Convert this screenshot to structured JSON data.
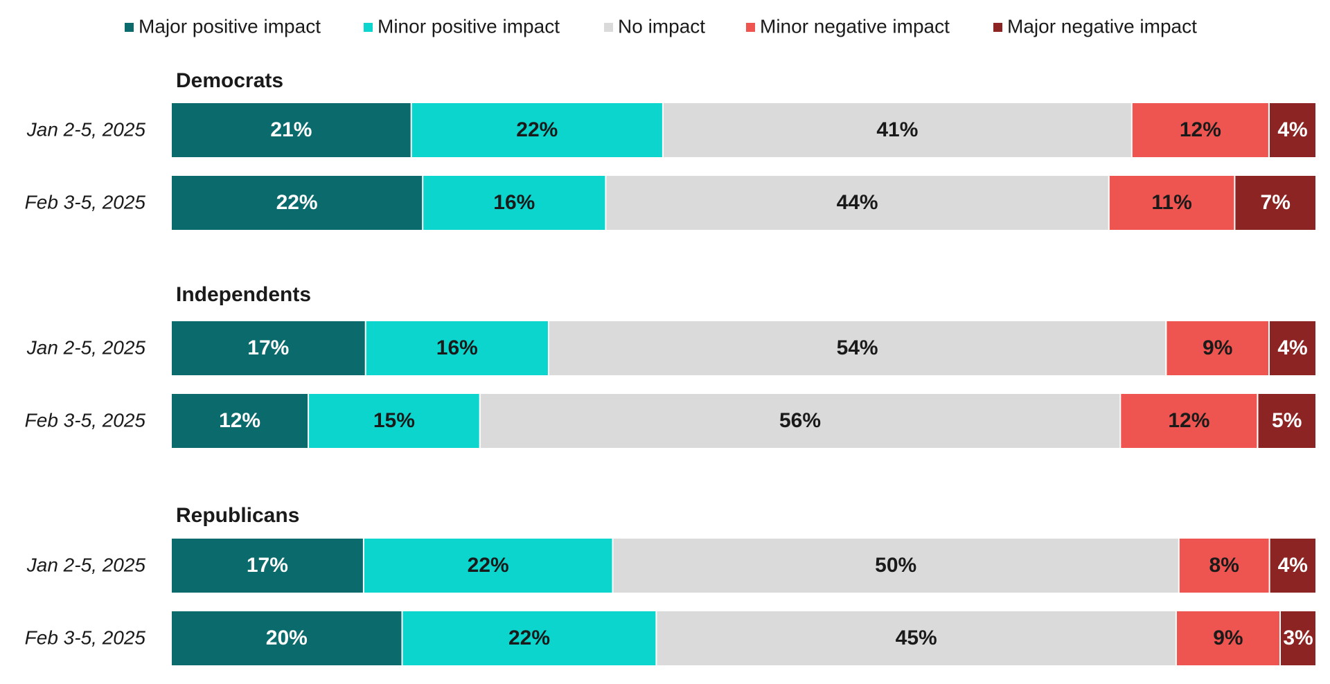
{
  "chart_data": {
    "type": "bar",
    "orientation": "horizontal-stacked-100",
    "legend_position": "top",
    "series": [
      {
        "name": "Major positive impact",
        "color": "#0b6a6b"
      },
      {
        "name": "Minor positive impact",
        "color": "#0bd5cc"
      },
      {
        "name": "No impact",
        "color": "#d9dad9"
      },
      {
        "name": "Minor negative impact",
        "color": "#ee5550"
      },
      {
        "name": "Major negative impact",
        "color": "#8c2424"
      }
    ],
    "label_colors": [
      "#ffffff",
      "#1a1a1a",
      "#1a1a1a",
      "#1a1a1a",
      "#ffffff"
    ],
    "groups": [
      {
        "title": "Democrats",
        "rows": [
          {
            "label": "Jan 2-5, 2025",
            "values": [
              21,
              22,
              41,
              12,
              4
            ],
            "labels": [
              "21%",
              "22%",
              "41%",
              "12%",
              "4%"
            ]
          },
          {
            "label": "Feb 3-5, 2025",
            "values": [
              22,
              16,
              44,
              11,
              7
            ],
            "labels": [
              "22%",
              "16%",
              "44%",
              "11%",
              "7%"
            ]
          }
        ]
      },
      {
        "title": "Independents",
        "rows": [
          {
            "label": "Jan 2-5, 2025",
            "values": [
              17,
              16,
              54,
              9,
              4
            ],
            "labels": [
              "17%",
              "16%",
              "54%",
              "9%",
              "4%"
            ]
          },
          {
            "label": "Feb 3-5, 2025",
            "values": [
              12,
              15,
              56,
              12,
              5
            ],
            "labels": [
              "12%",
              "15%",
              "56%",
              "12%",
              "5%"
            ]
          }
        ]
      },
      {
        "title": "Republicans",
        "rows": [
          {
            "label": "Jan 2-5, 2025",
            "values": [
              17,
              22,
              50,
              8,
              4
            ],
            "labels": [
              "17%",
              "22%",
              "50%",
              "8%",
              "4%"
            ]
          },
          {
            "label": "Feb 3-5, 2025",
            "values": [
              20,
              22,
              45,
              9,
              3
            ],
            "labels": [
              "20%",
              "22%",
              "45%",
              "9%",
              "3%"
            ]
          }
        ]
      }
    ]
  }
}
